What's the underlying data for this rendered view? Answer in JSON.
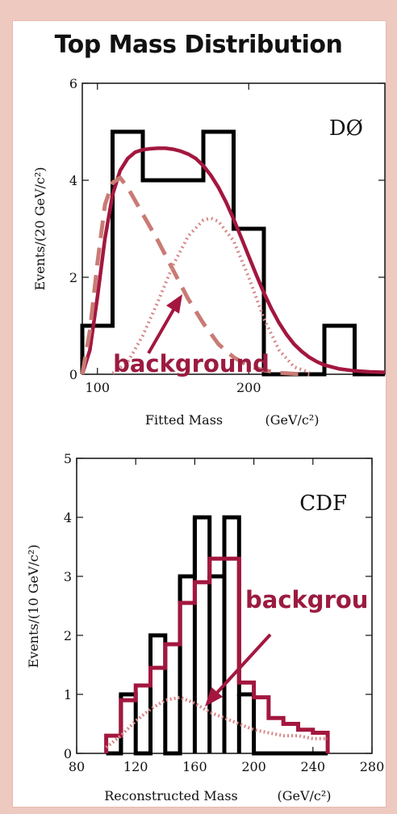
{
  "title": "Top Mass Distribution",
  "colors": {
    "signal": "#a3173f",
    "background_dashed": "#c97b75",
    "background_dotted": "#d7898a",
    "data": "#000000",
    "outer": "#eec9c0"
  },
  "chart_data": [
    {
      "type": "bar",
      "panel": "top",
      "experiment": "DØ",
      "xlabel": "Fitted Mass",
      "xunit": "(GeV/c²)",
      "ylabel": "Events/(20 GeV/c²)",
      "xlim": [
        90,
        290
      ],
      "ylim": [
        0,
        6
      ],
      "xticks": [
        100,
        200
      ],
      "yticks": [
        0,
        2,
        4,
        6
      ],
      "histogram": {
        "name": "data",
        "edges": [
          90,
          110,
          130,
          150,
          170,
          190,
          210,
          230,
          250,
          270,
          290
        ],
        "values": [
          1,
          5,
          4,
          4,
          5,
          3,
          0,
          0,
          1,
          0
        ]
      },
      "curves": [
        {
          "name": "fit",
          "style": "solid",
          "x": [
            90,
            95,
            100,
            105,
            110,
            115,
            120,
            125,
            130,
            135,
            140,
            145,
            150,
            155,
            160,
            165,
            170,
            175,
            180,
            185,
            190,
            195,
            200,
            205,
            210,
            215,
            220,
            225,
            230,
            235,
            240,
            245,
            250,
            260,
            270,
            280,
            290
          ],
          "y": [
            0,
            0.5,
            1.6,
            2.8,
            3.7,
            4.2,
            4.45,
            4.58,
            4.63,
            4.65,
            4.66,
            4.66,
            4.64,
            4.6,
            4.54,
            4.45,
            4.3,
            4.1,
            3.85,
            3.55,
            3.2,
            2.82,
            2.43,
            2.05,
            1.68,
            1.35,
            1.06,
            0.82,
            0.62,
            0.47,
            0.35,
            0.26,
            0.19,
            0.11,
            0.07,
            0.05,
            0.04
          ]
        },
        {
          "name": "background",
          "style": "dashed",
          "x": [
            90,
            95,
            100,
            105,
            110,
            115,
            120,
            130,
            140,
            150,
            160,
            170,
            180,
            190,
            200,
            210,
            220,
            230,
            240
          ],
          "y": [
            0,
            0.9,
            2.3,
            3.5,
            3.95,
            4.05,
            3.85,
            3.3,
            2.75,
            2.15,
            1.55,
            1.05,
            0.62,
            0.35,
            0.17,
            0.08,
            0.03,
            0.01,
            0.0
          ]
        },
        {
          "name": "signal",
          "style": "dotted",
          "x": [
            110,
            120,
            130,
            140,
            150,
            160,
            170,
            175,
            180,
            190,
            200,
            210,
            220,
            230,
            240
          ],
          "y": [
            0.02,
            0.25,
            0.8,
            1.5,
            2.25,
            2.85,
            3.18,
            3.22,
            3.15,
            2.75,
            2.0,
            1.15,
            0.5,
            0.15,
            0.04
          ]
        }
      ],
      "annotation": "background"
    },
    {
      "type": "bar",
      "panel": "bottom",
      "experiment": "CDF",
      "xlabel": "Reconstructed Mass",
      "xunit": "(GeV/c²)",
      "ylabel": "Events/(10 GeV/c²)",
      "xlim": [
        80,
        280
      ],
      "ylim": [
        0,
        5
      ],
      "xticks": [
        80,
        120,
        160,
        200,
        240,
        280
      ],
      "yticks": [
        0,
        1,
        2,
        3,
        4,
        5
      ],
      "histogram": {
        "name": "data",
        "edges": [
          100,
          110,
          120,
          130,
          140,
          150,
          160,
          170,
          180,
          190,
          200,
          210,
          220,
          230,
          240,
          250
        ],
        "values": [
          0,
          1,
          0,
          2,
          0,
          3,
          4,
          3,
          4,
          1,
          0,
          0,
          0,
          0,
          0
        ]
      },
      "series_steps": {
        "name": "fit",
        "edges": [
          100,
          110,
          120,
          130,
          140,
          150,
          160,
          170,
          180,
          190,
          200,
          210,
          220,
          230,
          240,
          250
        ],
        "values": [
          0.3,
          0.9,
          1.15,
          1.45,
          1.85,
          2.55,
          2.9,
          3.3,
          3.3,
          1.2,
          0.95,
          0.6,
          0.5,
          0.4,
          0.35
        ]
      },
      "series_dotted": {
        "name": "background",
        "x": [
          100,
          110,
          120,
          130,
          140,
          150,
          160,
          170,
          180,
          190,
          200,
          210,
          220,
          230,
          240,
          250
        ],
        "y": [
          0.1,
          0.3,
          0.55,
          0.75,
          0.9,
          0.95,
          0.85,
          0.7,
          0.6,
          0.5,
          0.4,
          0.35,
          0.3,
          0.3,
          0.25,
          0.25
        ]
      },
      "annotation": "backgrou"
    }
  ]
}
